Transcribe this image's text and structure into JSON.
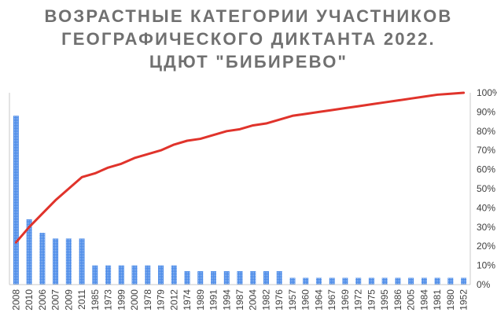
{
  "chart_data": {
    "type": "bar+line",
    "title_lines": [
      "ВОЗРАСТНЫЕ КАТЕГОРИИ УЧАСТНИКОВ",
      "ГЕОГРАФИЧЕСКОГО ДИКТАНТА 2022.",
      "ЦДЮТ \"БИБИРЕВО\""
    ],
    "categories": [
      "2008",
      "2010",
      "2006",
      "2007",
      "2009",
      "2011",
      "1985",
      "1973",
      "1999",
      "2000",
      "1978",
      "1979",
      "2012",
      "1974",
      "1989",
      "1991",
      "1994",
      "1987",
      "2004",
      "1982",
      "1976",
      "1957",
      "1960",
      "1964",
      "1967",
      "1969",
      "1972",
      "1975",
      "1995",
      "1986",
      "2005",
      "1984",
      "1981",
      "1980",
      "1952"
    ],
    "bar_series": {
      "values": [
        88,
        34,
        27,
        24,
        24,
        24,
        10,
        10,
        10,
        10,
        10,
        10,
        10,
        7,
        7,
        7,
        7,
        7,
        7,
        7,
        7,
        3.5,
        3.5,
        3.5,
        3.5,
        3.5,
        3.5,
        3.5,
        3.5,
        3.5,
        3.5,
        3.5,
        3.5,
        3.5,
        3.5
      ],
      "color": "#4a8ae8"
    },
    "line_series": {
      "values": [
        22,
        30,
        37,
        44,
        50,
        56,
        58,
        61,
        63,
        66,
        68,
        70,
        73,
        75,
        76,
        78,
        80,
        81,
        83,
        84,
        86,
        88,
        89,
        90,
        91,
        92,
        93,
        94,
        95,
        96,
        97,
        98,
        99,
        99.5,
        100
      ],
      "unit": "%",
      "color": "#e0332b"
    },
    "ylim_left": [
      0,
      100
    ],
    "ylim_right": [
      0,
      100
    ],
    "right_ticks": [
      "0%",
      "10%",
      "20%",
      "30%",
      "40%",
      "50%",
      "60%",
      "70%",
      "80%",
      "90%",
      "100%"
    ],
    "grid": false,
    "legend": "none"
  }
}
